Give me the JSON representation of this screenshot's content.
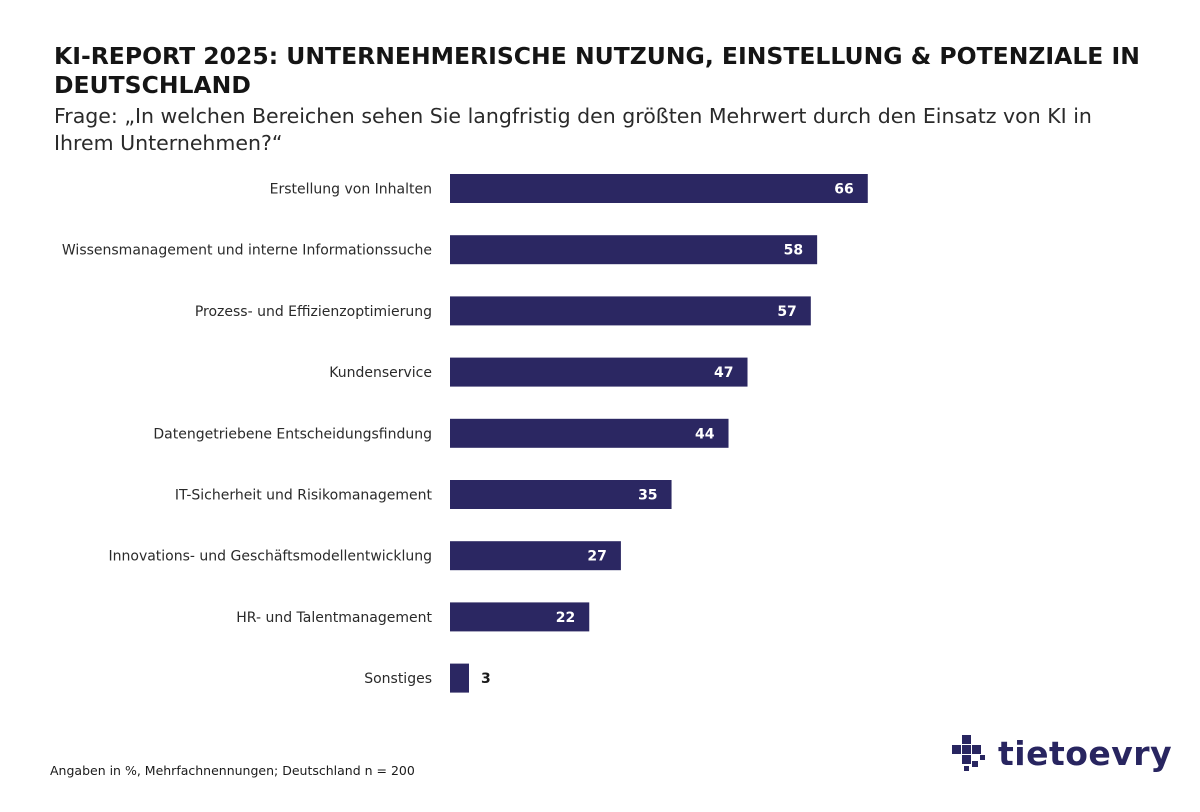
{
  "header": {
    "title": "KI-REPORT 2025: UNTERNEHMERISCHE NUTZUNG, EINSTELLUNG & POTENZIALE IN DEUTSCHLAND",
    "subtitle": "Frage: „In welchen Bereichen sehen Sie langfristig den größten Mehrwert durch den Einsatz von KI in Ihrem Unternehmen?“"
  },
  "chart_data": {
    "type": "bar",
    "orientation": "horizontal",
    "categories": [
      "Erstellung von Inhalten",
      "Wissensmanagement und interne Informationssuche",
      "Prozess- und Effizienzoptimierung",
      "Kundenservice",
      "Datengetriebene Entscheidungsfindung",
      "IT-Sicherheit und Risikomanagement",
      "Innovations- und Geschäftsmodellentwicklung",
      "HR- und Talentmanagement",
      "Sonstiges"
    ],
    "values": [
      66,
      58,
      57,
      47,
      44,
      35,
      27,
      22,
      3
    ],
    "xlim": [
      0,
      100
    ],
    "grid": false,
    "legend": "none",
    "data_labels": true,
    "bar_color": "#2b2762"
  },
  "footer": {
    "note": "Angaben in %, Mehrfachnennungen; Deutschland n = 200",
    "logo_text": "tietoevry"
  },
  "colors": {
    "bar": "#2b2762",
    "label_inside": "#ffffff",
    "label_outside": "#1a1a1a",
    "logo": "#282560"
  },
  "icons": {
    "logo_mark": "tietoevry-pixel-logo-icon"
  }
}
